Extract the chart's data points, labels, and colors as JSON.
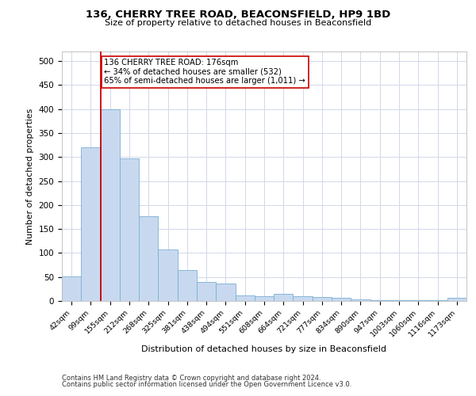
{
  "title": "136, CHERRY TREE ROAD, BEACONSFIELD, HP9 1BD",
  "subtitle": "Size of property relative to detached houses in Beaconsfield",
  "xlabel": "Distribution of detached houses by size in Beaconsfield",
  "ylabel": "Number of detached properties",
  "categories": [
    "42sqm",
    "99sqm",
    "155sqm",
    "212sqm",
    "268sqm",
    "325sqm",
    "381sqm",
    "438sqm",
    "494sqm",
    "551sqm",
    "608sqm",
    "664sqm",
    "721sqm",
    "777sqm",
    "834sqm",
    "890sqm",
    "947sqm",
    "1003sqm",
    "1060sqm",
    "1116sqm",
    "1173sqm"
  ],
  "values": [
    52,
    320,
    400,
    297,
    176,
    108,
    65,
    40,
    37,
    11,
    10,
    15,
    10,
    8,
    6,
    3,
    1,
    1,
    1,
    1,
    6
  ],
  "bar_color": "#c8d9ef",
  "bar_edge_color": "#7bafd4",
  "vline_color": "#cc0000",
  "annotation_text": "136 CHERRY TREE ROAD: 176sqm\n← 34% of detached houses are smaller (532)\n65% of semi-detached houses are larger (1,011) →",
  "annotation_box_color": "#ffffff",
  "annotation_box_edge": "#cc0000",
  "ylim": [
    0,
    520
  ],
  "yticks": [
    0,
    50,
    100,
    150,
    200,
    250,
    300,
    350,
    400,
    450,
    500
  ],
  "footnote1": "Contains HM Land Registry data © Crown copyright and database right 2024.",
  "footnote2": "Contains public sector information licensed under the Open Government Licence v3.0.",
  "background_color": "#ffffff",
  "grid_color": "#d0d8e8"
}
